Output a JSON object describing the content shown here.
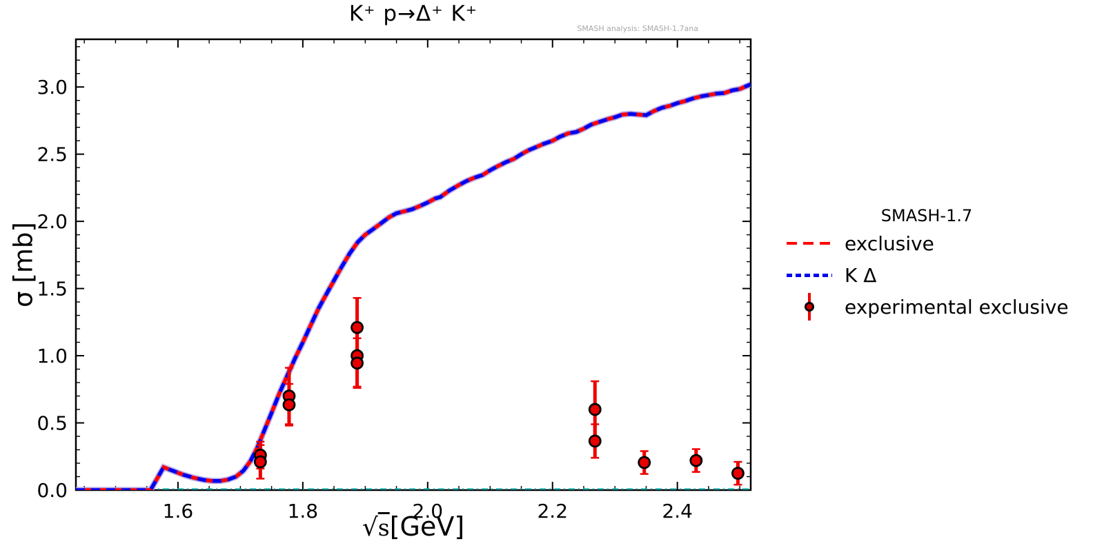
{
  "note": "SMASH analysis: SMASH-1.7ana",
  "chart_data": {
    "type": "line",
    "title": "K⁺ p→Δ⁺ K⁺",
    "xlabel": "√s [GeV]",
    "xlabel_parts": {
      "radical": "√",
      "radicand": "s",
      "unit": "[GeV]"
    },
    "ylabel": "σ [mb]",
    "xlim": [
      1.4365,
      2.5175
    ],
    "ylim": [
      0,
      3.355
    ],
    "x_major_ticks": [
      1.6,
      1.8,
      2.0,
      2.2,
      2.4
    ],
    "x_minor_step": 0.05,
    "y_major_ticks": [
      0.0,
      0.5,
      1.0,
      1.5,
      2.0,
      2.5,
      3.0
    ],
    "y_minor_step": 0.1,
    "grid": false,
    "legend": {
      "title": "SMASH-1.7",
      "entries": [
        "exclusive",
        "K Δ",
        "experimental exclusive"
      ],
      "position": "right-outside"
    },
    "colors": {
      "exclusive": "#ff0000",
      "kdelta": "#0000ee",
      "overlap_halo": "#b2a0e6",
      "zero_line": "#00b0b0",
      "errorbar": "#ee0000",
      "marker_fill": "#e80000",
      "marker_edge": "#000000"
    },
    "series": [
      {
        "name": "exclusive",
        "style": "dashed",
        "color": "#ff0000",
        "points": [
          [
            1.4365,
            0.0
          ],
          [
            1.48,
            0.0
          ],
          [
            1.52,
            0.0
          ],
          [
            1.548,
            0.0
          ],
          [
            1.556,
            0.0
          ],
          [
            1.577,
            0.17
          ],
          [
            1.592,
            0.143
          ],
          [
            1.608,
            0.115
          ],
          [
            1.625,
            0.092
          ],
          [
            1.642,
            0.075
          ],
          [
            1.655,
            0.068
          ],
          [
            1.668,
            0.068
          ],
          [
            1.68,
            0.078
          ],
          [
            1.693,
            0.1
          ],
          [
            1.705,
            0.145
          ],
          [
            1.716,
            0.215
          ],
          [
            1.727,
            0.315
          ],
          [
            1.738,
            0.44
          ],
          [
            1.75,
            0.575
          ],
          [
            1.762,
            0.715
          ],
          [
            1.775,
            0.85
          ],
          [
            1.788,
            0.985
          ],
          [
            1.8,
            1.1
          ],
          [
            1.812,
            1.22
          ],
          [
            1.825,
            1.35
          ],
          [
            1.838,
            1.46
          ],
          [
            1.85,
            1.56
          ],
          [
            1.862,
            1.66
          ],
          [
            1.875,
            1.76
          ],
          [
            1.888,
            1.845
          ],
          [
            1.9,
            1.9
          ],
          [
            1.912,
            1.94
          ],
          [
            1.925,
            1.985
          ],
          [
            1.938,
            2.03
          ],
          [
            1.95,
            2.06
          ],
          [
            1.963,
            2.075
          ],
          [
            1.975,
            2.09
          ],
          [
            1.988,
            2.115
          ],
          [
            2.0,
            2.14
          ],
          [
            2.012,
            2.17
          ],
          [
            2.02,
            2.18
          ],
          [
            2.035,
            2.23
          ],
          [
            2.05,
            2.27
          ],
          [
            2.062,
            2.3
          ],
          [
            2.075,
            2.325
          ],
          [
            2.088,
            2.345
          ],
          [
            2.1,
            2.38
          ],
          [
            2.112,
            2.41
          ],
          [
            2.125,
            2.44
          ],
          [
            2.138,
            2.465
          ],
          [
            2.15,
            2.5
          ],
          [
            2.162,
            2.53
          ],
          [
            2.175,
            2.555
          ],
          [
            2.185,
            2.575
          ],
          [
            2.2,
            2.6
          ],
          [
            2.212,
            2.63
          ],
          [
            2.225,
            2.655
          ],
          [
            2.238,
            2.665
          ],
          [
            2.25,
            2.69
          ],
          [
            2.262,
            2.72
          ],
          [
            2.275,
            2.74
          ],
          [
            2.288,
            2.76
          ],
          [
            2.3,
            2.775
          ],
          [
            2.312,
            2.795
          ],
          [
            2.325,
            2.8
          ],
          [
            2.338,
            2.795
          ],
          [
            2.35,
            2.79
          ],
          [
            2.362,
            2.82
          ],
          [
            2.375,
            2.845
          ],
          [
            2.388,
            2.86
          ],
          [
            2.4,
            2.88
          ],
          [
            2.412,
            2.895
          ],
          [
            2.425,
            2.915
          ],
          [
            2.438,
            2.93
          ],
          [
            2.45,
            2.94
          ],
          [
            2.462,
            2.95
          ],
          [
            2.475,
            2.955
          ],
          [
            2.488,
            2.975
          ],
          [
            2.5,
            2.985
          ],
          [
            2.5175,
            3.02
          ]
        ]
      },
      {
        "name": "K Δ",
        "style": "dotted",
        "color": "#0000ee",
        "points_same_as": "exclusive"
      },
      {
        "name": "zero-line",
        "style": "dashdot",
        "color": "#00b0b0",
        "points": [
          [
            1.4365,
            0.0
          ],
          [
            2.5175,
            0.0
          ]
        ]
      }
    ],
    "experimental": {
      "name": "experimental exclusive",
      "points": [
        {
          "x": 1.732,
          "y": 0.26,
          "err": 0.1
        },
        {
          "x": 1.732,
          "y": 0.21,
          "err": 0.125
        },
        {
          "x": 1.778,
          "y": 0.7,
          "err": 0.21
        },
        {
          "x": 1.778,
          "y": 0.635,
          "err": 0.155
        },
        {
          "x": 1.887,
          "y": 1.21,
          "err": 0.22
        },
        {
          "x": 1.887,
          "y": 1.0,
          "err": 0.23
        },
        {
          "x": 1.887,
          "y": 0.945,
          "err": 0.185
        },
        {
          "x": 2.268,
          "y": 0.6,
          "err": 0.21
        },
        {
          "x": 2.268,
          "y": 0.365,
          "err": 0.125
        },
        {
          "x": 2.347,
          "y": 0.205,
          "err": 0.085
        },
        {
          "x": 2.43,
          "y": 0.22,
          "err": 0.085
        },
        {
          "x": 2.497,
          "y": 0.125,
          "err": 0.085
        }
      ]
    }
  }
}
